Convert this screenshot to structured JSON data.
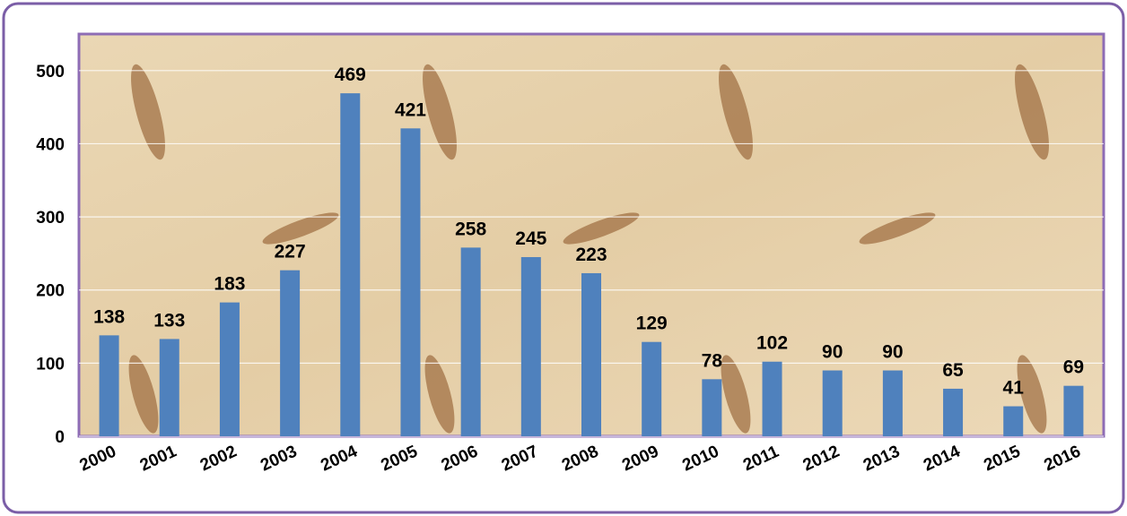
{
  "chart_data": {
    "type": "bar",
    "categories": [
      "2000",
      "2001",
      "2002",
      "2003",
      "2004",
      "2005",
      "2006",
      "2007",
      "2008",
      "2009",
      "2010",
      "2011",
      "2012",
      "2013",
      "2014",
      "2015",
      "2016"
    ],
    "values": [
      138,
      133,
      183,
      227,
      469,
      421,
      258,
      245,
      223,
      129,
      78,
      102,
      90,
      90,
      65,
      41,
      69
    ],
    "color": "#4f81bd",
    "ylim": [
      0,
      550
    ],
    "yticks": [
      0,
      100,
      200,
      300,
      400,
      500
    ],
    "grid": true
  }
}
